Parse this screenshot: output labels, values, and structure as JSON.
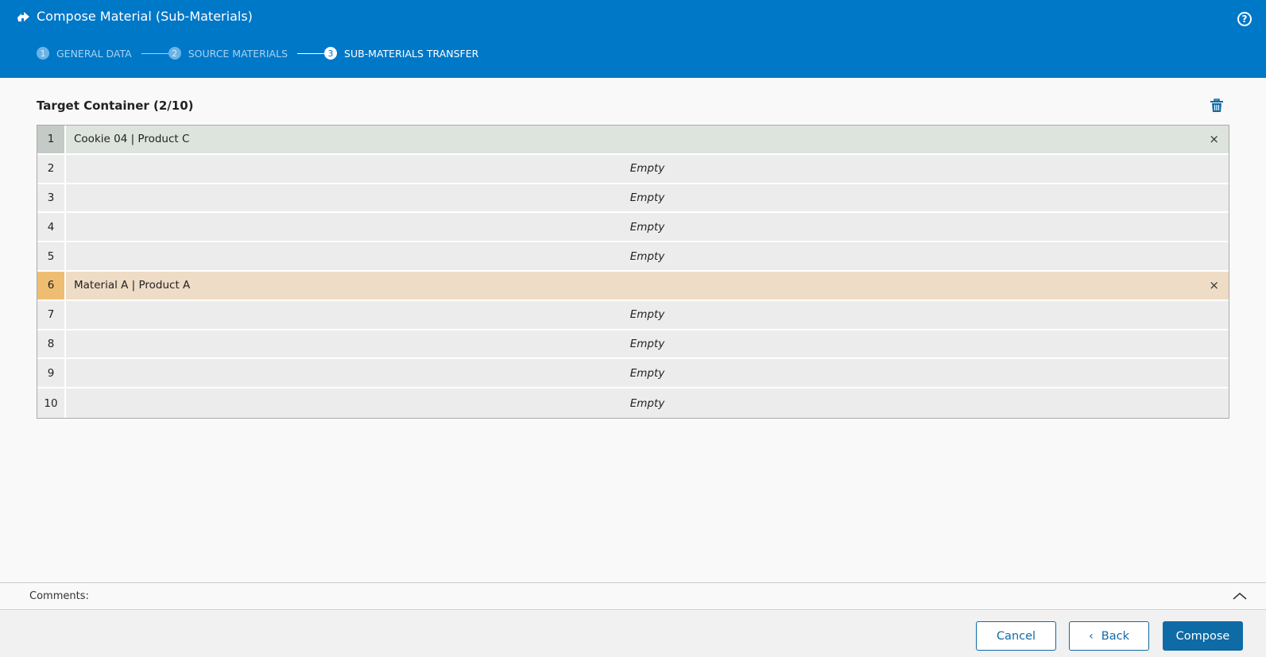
{
  "header": {
    "title": "Compose Material (Sub-Materials)",
    "icon": "compose-arrow-icon",
    "help_icon": "help-icon",
    "steps": [
      {
        "num": "1",
        "label": "GENERAL DATA"
      },
      {
        "num": "2",
        "label": "SOURCE MATERIALS"
      },
      {
        "num": "3",
        "label": "SUB-MATERIALS TRANSFER",
        "active": true
      }
    ]
  },
  "section": {
    "title": "Target Container (2/10)"
  },
  "slots": [
    {
      "index": "1",
      "content": "Cookie 04 | Product C",
      "state": "green"
    },
    {
      "index": "2",
      "content": "Empty"
    },
    {
      "index": "3",
      "content": "Empty"
    },
    {
      "index": "4",
      "content": "Empty"
    },
    {
      "index": "5",
      "content": "Empty"
    },
    {
      "index": "6",
      "content": "Material A | Product A",
      "state": "orange"
    },
    {
      "index": "7",
      "content": "Empty"
    },
    {
      "index": "8",
      "content": "Empty"
    },
    {
      "index": "9",
      "content": "Empty"
    },
    {
      "index": "10",
      "content": "Empty"
    }
  ],
  "comments": {
    "label": "Comments:"
  },
  "footer": {
    "cancel": "Cancel",
    "back": "Back",
    "compose": "Compose"
  },
  "colors": {
    "header": "#0078c8",
    "primary": "#0f6ba6",
    "filled_green": "#dde3dd",
    "filled_orange": "#efdcc6"
  }
}
